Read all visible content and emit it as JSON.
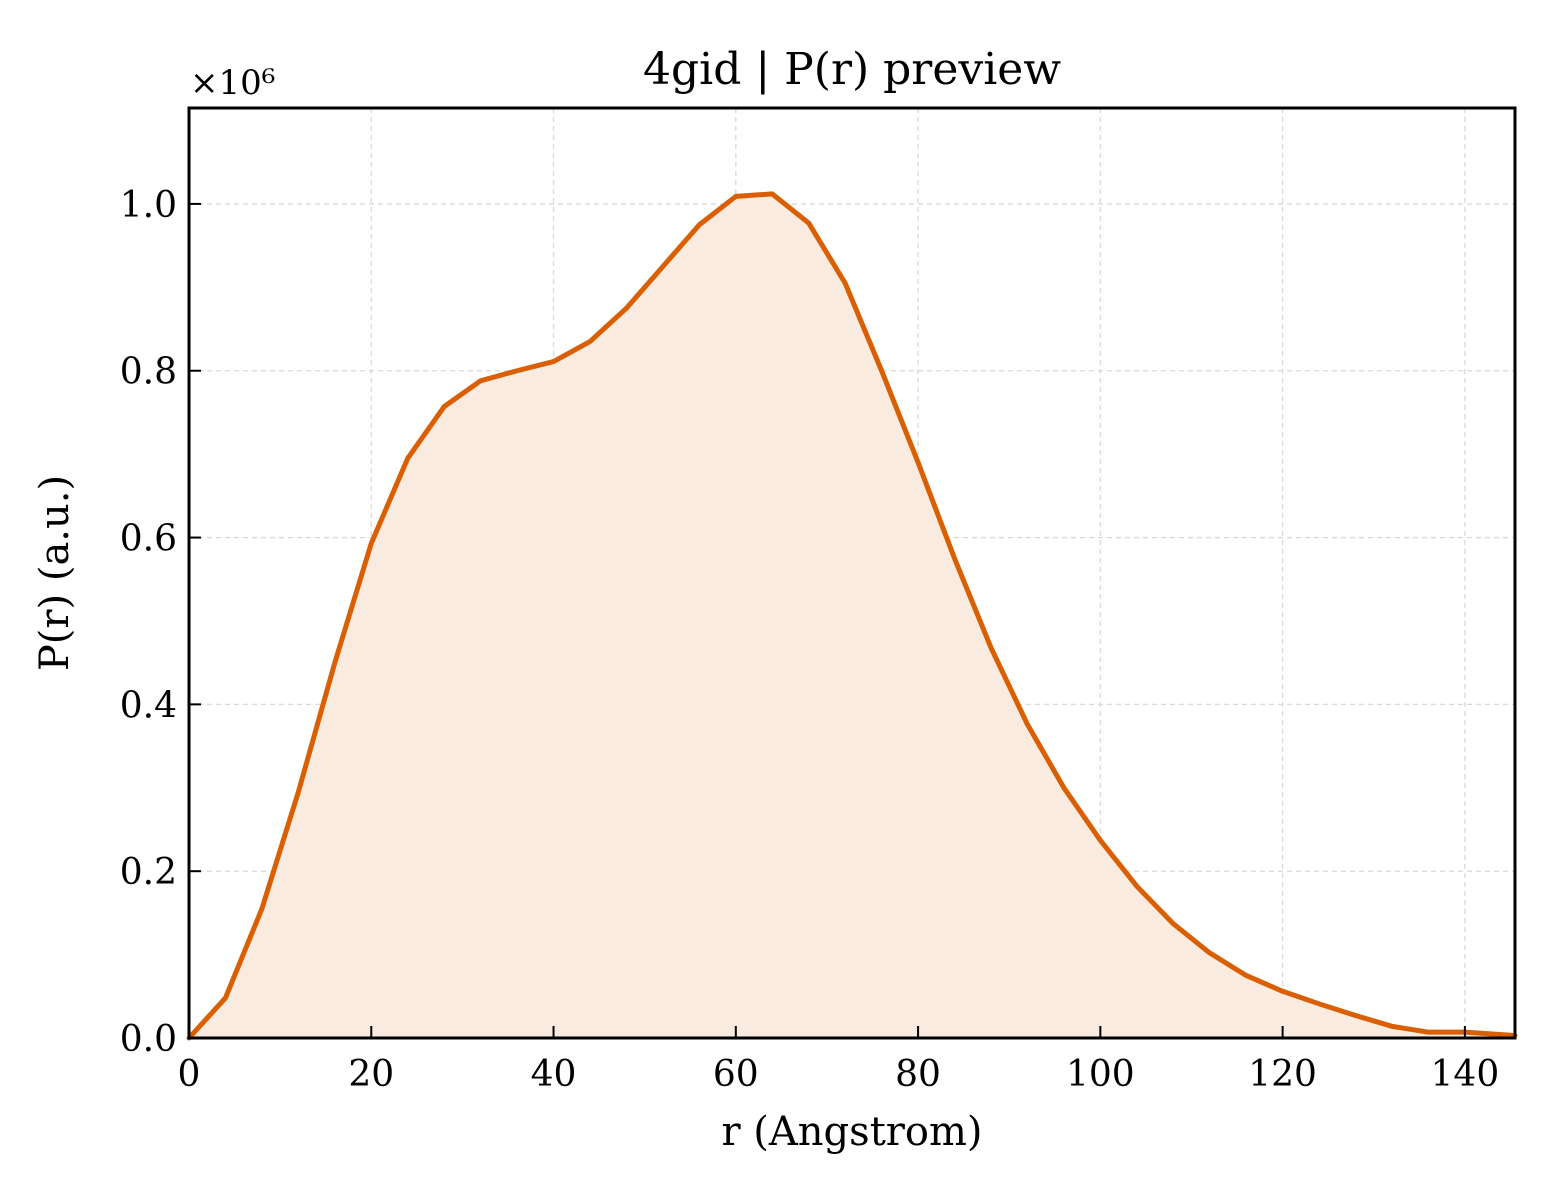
{
  "chart_data": {
    "type": "area",
    "title": "4gid | P(r) preview",
    "xlabel": "r (Angstrom)",
    "ylabel": "P(r) (a.u.)",
    "y_offset_label": "×10⁶",
    "y_scale": 1000000,
    "xlim": [
      0,
      145.5
    ],
    "ylim": [
      0,
      1.115
    ],
    "xticks": [
      0,
      20,
      40,
      60,
      80,
      100,
      120,
      140
    ],
    "xtick_labels": [
      "0",
      "20",
      "40",
      "60",
      "80",
      "100",
      "120",
      "140"
    ],
    "yticks": [
      0,
      0.2,
      0.4,
      0.6,
      0.8,
      1.0
    ],
    "ytick_labels": [
      "0.0",
      "0.2",
      "0.4",
      "0.6",
      "0.8",
      "1.0"
    ],
    "grid": true,
    "legend": "none",
    "series": [
      {
        "x": [
          0,
          4,
          8,
          12,
          16,
          20,
          24,
          28,
          32,
          36,
          40,
          44,
          48,
          52,
          56,
          60,
          64,
          68,
          72,
          76,
          80,
          84,
          88,
          92,
          96,
          100,
          104,
          108,
          112,
          116,
          120,
          124,
          128,
          132,
          136,
          140,
          144,
          145.5
        ],
        "y": [
          0.0,
          0.048,
          0.155,
          0.295,
          0.45,
          0.593,
          0.695,
          0.757,
          0.788,
          0.8,
          0.811,
          0.835,
          0.875,
          0.925,
          0.975,
          1.009,
          1.012,
          0.977,
          0.905,
          0.8,
          0.69,
          0.575,
          0.468,
          0.376,
          0.3,
          0.237,
          0.182,
          0.137,
          0.102,
          0.075,
          0.056,
          0.041,
          0.027,
          0.014,
          0.007,
          0.007,
          0.004,
          0.003
        ],
        "color": "#D95F02",
        "fill_color": "#F9EBDF"
      }
    ]
  }
}
